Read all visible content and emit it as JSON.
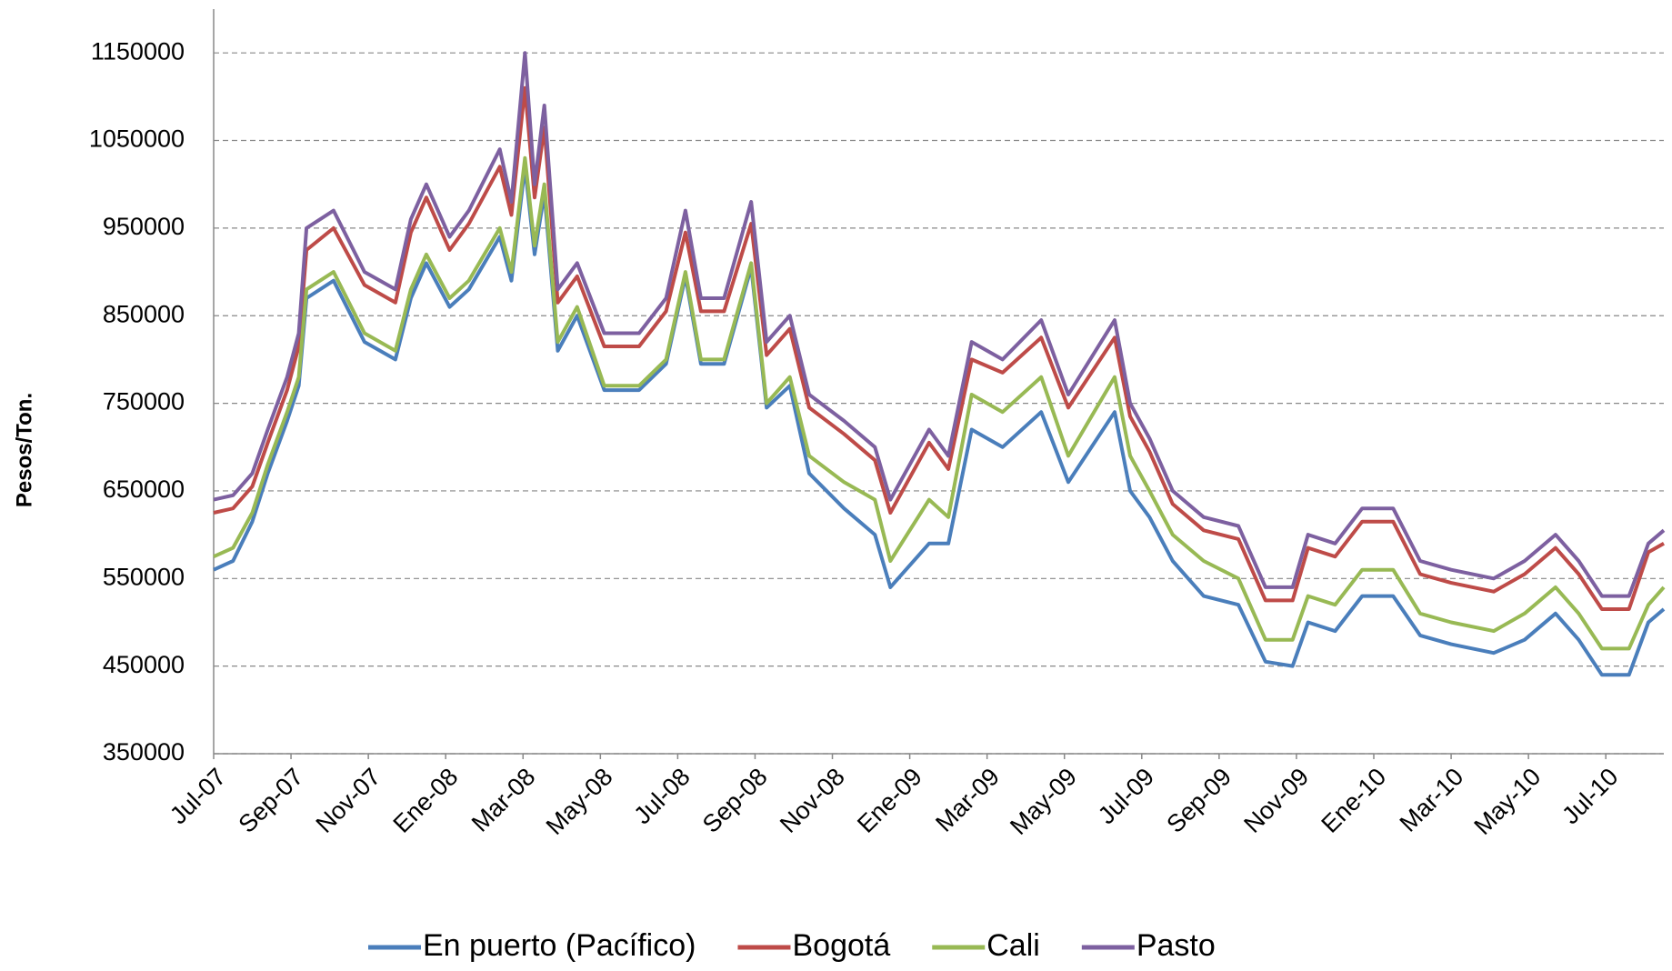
{
  "chart_data": {
    "type": "line",
    "y_label": "Pesos/Ton.",
    "x": [
      0,
      0.5,
      1,
      1.4,
      1.9,
      2.2,
      2.4,
      3.1,
      3.9,
      4.7,
      5.1,
      5.5,
      6.1,
      6.6,
      7.4,
      7.7,
      8.05,
      8.3,
      8.55,
      8.9,
      9.4,
      10.1,
      11,
      11.7,
      12.2,
      12.6,
      13.2,
      13.9,
      14.3,
      14.9,
      15.4,
      16.3,
      17.1,
      17.5,
      18.5,
      19,
      19.6,
      20.4,
      21.4,
      22.1,
      23.3,
      23.7,
      24.2,
      24.8,
      25.6,
      26.5,
      27.2,
      27.9,
      28.3,
      29,
      29.7,
      30.5,
      31.2,
      32,
      33.1,
      33.9,
      34.7,
      35.3,
      35.9,
      36.6,
      37.1,
      37.5
    ],
    "series": [
      {
        "name": "En puerto (Pacífico)",
        "color": "#4a7ebb",
        "values": [
          560000,
          570000,
          615000,
          670000,
          730000,
          770000,
          870000,
          890000,
          820000,
          800000,
          870000,
          910000,
          860000,
          880000,
          940000,
          890000,
          1020000,
          920000,
          990000,
          810000,
          850000,
          765000,
          765000,
          795000,
          895000,
          795000,
          795000,
          905000,
          745000,
          770000,
          670000,
          630000,
          600000,
          540000,
          590000,
          590000,
          720000,
          700000,
          740000,
          660000,
          740000,
          650000,
          620000,
          570000,
          530000,
          520000,
          455000,
          450000,
          500000,
          490000,
          530000,
          530000,
          485000,
          475000,
          465000,
          480000,
          510000,
          480000,
          440000,
          440000,
          500000,
          515000
        ]
      },
      {
        "name": "Bogotá",
        "color": "#be4b48",
        "values": [
          625000,
          630000,
          655000,
          705000,
          765000,
          815000,
          925000,
          950000,
          885000,
          865000,
          945000,
          985000,
          925000,
          955000,
          1020000,
          965000,
          1110000,
          985000,
          1065000,
          865000,
          895000,
          815000,
          815000,
          855000,
          945000,
          855000,
          855000,
          955000,
          805000,
          835000,
          745000,
          715000,
          685000,
          625000,
          705000,
          675000,
          800000,
          785000,
          825000,
          745000,
          825000,
          735000,
          695000,
          635000,
          605000,
          595000,
          525000,
          525000,
          585000,
          575000,
          615000,
          615000,
          555000,
          545000,
          535000,
          555000,
          585000,
          555000,
          515000,
          515000,
          580000,
          590000
        ]
      },
      {
        "name": "Cali",
        "color": "#98b954",
        "values": [
          575000,
          585000,
          625000,
          680000,
          740000,
          780000,
          880000,
          900000,
          830000,
          810000,
          880000,
          920000,
          870000,
          890000,
          950000,
          900000,
          1030000,
          930000,
          1000000,
          820000,
          860000,
          770000,
          770000,
          800000,
          900000,
          800000,
          800000,
          910000,
          750000,
          780000,
          690000,
          660000,
          640000,
          570000,
          640000,
          620000,
          760000,
          740000,
          780000,
          690000,
          780000,
          690000,
          650000,
          600000,
          570000,
          550000,
          480000,
          480000,
          530000,
          520000,
          560000,
          560000,
          510000,
          500000,
          490000,
          510000,
          540000,
          510000,
          470000,
          470000,
          520000,
          540000
        ]
      },
      {
        "name": "Pasto",
        "color": "#7d60a0",
        "values": [
          640000,
          645000,
          670000,
          720000,
          780000,
          830000,
          950000,
          970000,
          900000,
          880000,
          960000,
          1000000,
          940000,
          970000,
          1040000,
          980000,
          1150000,
          1000000,
          1090000,
          880000,
          910000,
          830000,
          830000,
          870000,
          970000,
          870000,
          870000,
          980000,
          820000,
          850000,
          760000,
          730000,
          700000,
          640000,
          720000,
          690000,
          820000,
          800000,
          845000,
          760000,
          845000,
          750000,
          710000,
          650000,
          620000,
          610000,
          540000,
          540000,
          600000,
          590000,
          630000,
          630000,
          570000,
          560000,
          550000,
          570000,
          600000,
          570000,
          530000,
          530000,
          590000,
          605000
        ]
      }
    ],
    "xlim": [
      0,
      37.5
    ],
    "xticks": [
      {
        "value": 0,
        "label": "Jul-07"
      },
      {
        "value": 2,
        "label": "Sep-07"
      },
      {
        "value": 4,
        "label": "Nov-07"
      },
      {
        "value": 6,
        "label": "Ene-08"
      },
      {
        "value": 8,
        "label": "Mar-08"
      },
      {
        "value": 10,
        "label": "May-08"
      },
      {
        "value": 12,
        "label": "Jul-08"
      },
      {
        "value": 14,
        "label": "Sep-08"
      },
      {
        "value": 16,
        "label": "Nov-08"
      },
      {
        "value": 18,
        "label": "Ene-09"
      },
      {
        "value": 20,
        "label": "Mar-09"
      },
      {
        "value": 22,
        "label": "May-09"
      },
      {
        "value": 24,
        "label": "Jul-09"
      },
      {
        "value": 26,
        "label": "Sep-09"
      },
      {
        "value": 28,
        "label": "Nov-09"
      },
      {
        "value": 30,
        "label": "Ene-10"
      },
      {
        "value": 32,
        "label": "Mar-10"
      },
      {
        "value": 34,
        "label": "May-10"
      },
      {
        "value": 36,
        "label": "Jul-10"
      }
    ],
    "ylim": [
      350000,
      1200000
    ],
    "yticks": [
      350000,
      450000,
      550000,
      650000,
      750000,
      850000,
      950000,
      1050000,
      1150000
    ],
    "grid": true,
    "legend": "bottom"
  }
}
